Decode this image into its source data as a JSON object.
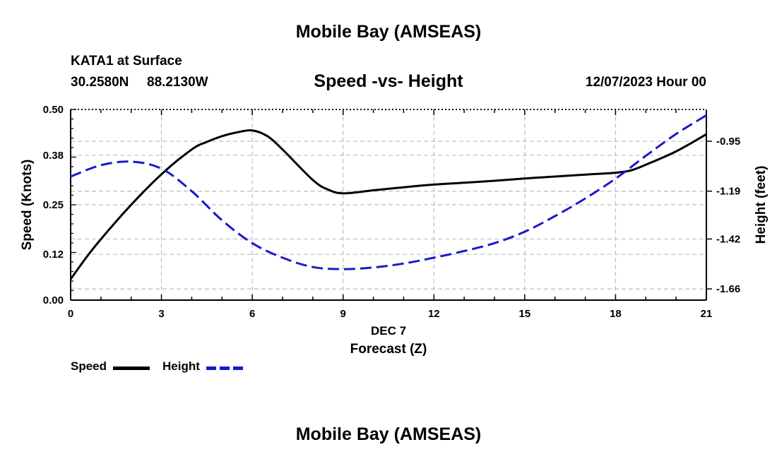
{
  "page_title": "Mobile Bay (AMSEAS)",
  "station": {
    "name_line": "KATA1 at Surface",
    "lat": "30.2580N",
    "lon": "88.2130W"
  },
  "subtitle": "Speed -vs- Height",
  "forecast_time": "12/07/2023 Hour 00",
  "chart_data": {
    "type": "line",
    "title": "Speed -vs- Height",
    "xlabel_day": "DEC 7",
    "xlabel": "Forecast (Z)",
    "ylabel": "Speed (Knots)",
    "y2label": "Height (feet)",
    "xlim": [
      0,
      21
    ],
    "ylim": [
      0,
      0.5
    ],
    "y2lim": [
      -1.714,
      -0.797
    ],
    "x_ticks": [
      "0",
      "3",
      "6",
      "9",
      "12",
      "15",
      "18",
      "21"
    ],
    "y_ticks": [
      "0.00",
      "0.12",
      "0.25",
      "0.38",
      "0.50"
    ],
    "y2_ticks": [
      "-0.95",
      "-1.19",
      "-1.42",
      "-1.66"
    ],
    "grid": true,
    "series": [
      {
        "name": "Speed",
        "axis": "left",
        "color": "#000000",
        "style": "solid",
        "x": [
          0,
          0.5,
          1,
          2,
          3,
          4,
          4.5,
          5,
          5.5,
          6,
          6.5,
          7,
          8,
          8.5,
          9,
          10,
          11,
          12,
          13,
          14,
          15,
          16,
          17,
          18,
          18.5,
          19,
          20,
          21
        ],
        "values": [
          0.055,
          0.11,
          0.16,
          0.25,
          0.33,
          0.395,
          0.415,
          0.43,
          0.44,
          0.445,
          0.43,
          0.395,
          0.315,
          0.29,
          0.28,
          0.288,
          0.296,
          0.303,
          0.308,
          0.313,
          0.319,
          0.324,
          0.329,
          0.334,
          0.34,
          0.355,
          0.39,
          0.435
        ]
      },
      {
        "name": "Height",
        "axis": "right",
        "color": "#1a1acc",
        "style": "dashed",
        "x": [
          0,
          1,
          2,
          3,
          4,
          5,
          6,
          7,
          8,
          9,
          10,
          11,
          12,
          13,
          14,
          15,
          16,
          17,
          18,
          19,
          20,
          21
        ],
        "values": [
          -1.12,
          -1.065,
          -1.048,
          -1.082,
          -1.19,
          -1.33,
          -1.44,
          -1.51,
          -1.555,
          -1.565,
          -1.557,
          -1.538,
          -1.51,
          -1.478,
          -1.44,
          -1.385,
          -1.31,
          -1.225,
          -1.13,
          -1.02,
          -0.915,
          -0.825
        ]
      }
    ]
  },
  "legend": {
    "items": [
      {
        "label": "Speed",
        "color": "#000000",
        "style": "solid"
      },
      {
        "label": "Height",
        "color": "#1a1acc",
        "style": "dashed"
      }
    ]
  },
  "footer_title": "Mobile Bay (AMSEAS)"
}
